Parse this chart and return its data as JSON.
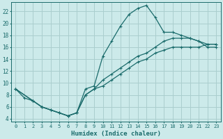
{
  "title": "",
  "xlabel": "Humidex (Indice chaleur)",
  "ylabel": "",
  "bg_color": "#cceaea",
  "line_color": "#1a6b6b",
  "grid_color": "#aacece",
  "xlim": [
    -0.5,
    23.5
  ],
  "ylim": [
    3.5,
    23.5
  ],
  "xticks": [
    0,
    1,
    2,
    3,
    4,
    5,
    6,
    7,
    8,
    9,
    10,
    11,
    12,
    13,
    14,
    15,
    16,
    17,
    18,
    19,
    20,
    21,
    22,
    23
  ],
  "yticks": [
    4,
    6,
    8,
    10,
    12,
    14,
    16,
    18,
    20,
    22
  ],
  "curve1_x": [
    0,
    1,
    2,
    3,
    4,
    5,
    6,
    7,
    8,
    9,
    10,
    11,
    12,
    13,
    14,
    15,
    16,
    17,
    18,
    19,
    20,
    21,
    22,
    23
  ],
  "curve1_y": [
    9,
    7.5,
    7,
    6,
    5.5,
    5,
    4.5,
    5,
    9,
    9.5,
    14.5,
    17,
    19.5,
    21.5,
    22.5,
    23,
    21,
    18.5,
    18.5,
    18,
    17.5,
    17,
    16,
    16
  ],
  "curve2_x": [
    0,
    2,
    3,
    4,
    5,
    6,
    7,
    8,
    9,
    10,
    11,
    12,
    13,
    14,
    15,
    16,
    17,
    18,
    19,
    20,
    21,
    22,
    23
  ],
  "curve2_y": [
    9,
    7,
    6,
    5.5,
    5,
    4.5,
    5,
    8,
    9,
    10.5,
    11.5,
    12.5,
    13.5,
    14.5,
    15,
    16,
    17,
    17.5,
    17.5,
    17.5,
    17,
    16.5,
    16.5
  ],
  "curve3_x": [
    0,
    2,
    3,
    4,
    5,
    6,
    7,
    8,
    9,
    10,
    11,
    12,
    13,
    14,
    15,
    16,
    17,
    18,
    19,
    20,
    21,
    22,
    23
  ],
  "curve3_y": [
    9,
    7,
    6,
    5.5,
    5,
    4.5,
    5,
    8,
    9,
    9.5,
    10.5,
    11.5,
    12.5,
    13.5,
    14,
    15,
    15.5,
    16,
    16,
    16,
    16,
    16.5,
    16.5
  ]
}
